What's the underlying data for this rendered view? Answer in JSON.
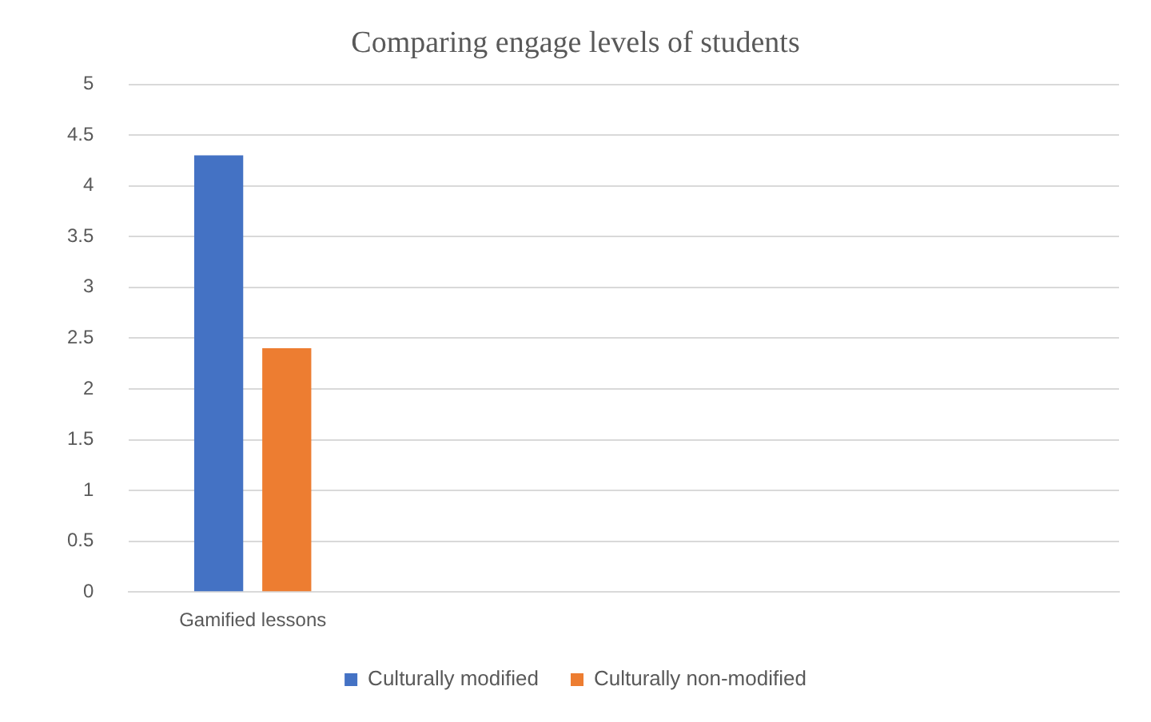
{
  "chart_data": {
    "type": "bar",
    "title": "Comparing engage levels of students",
    "categories": [
      "Gamified lessons",
      null,
      null,
      null
    ],
    "series": [
      {
        "name": "Culturally modified",
        "color": "#4472c4",
        "values": [
          4.3,
          null,
          null,
          null
        ]
      },
      {
        "name": "Culturally non-modified",
        "color": "#ed7d31",
        "values": [
          2.4,
          null,
          null,
          null
        ]
      }
    ],
    "ylim": [
      0,
      5
    ],
    "yticks": [
      0,
      0.5,
      1,
      1.5,
      2,
      2.5,
      3,
      3.5,
      4,
      4.5,
      5
    ],
    "grid": "y",
    "legend": "bottom"
  }
}
